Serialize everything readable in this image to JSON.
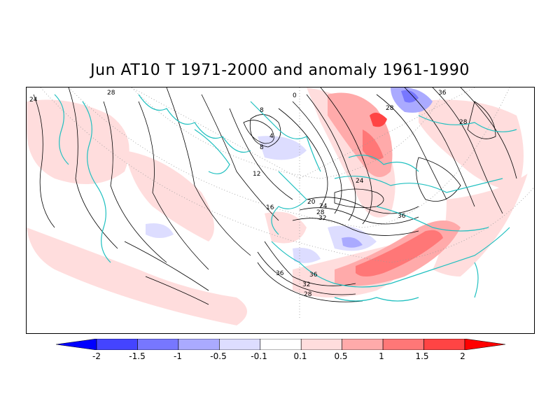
{
  "title": "Jun AT10 T 1971-2000 and anomaly 1961-1990",
  "contour_labels": [
    "24",
    "28",
    "0",
    "36",
    "8",
    "28",
    "4",
    "8",
    "28",
    "12",
    "24",
    "16",
    "20",
    "24",
    "28",
    "32",
    "36",
    "36",
    "36",
    "32",
    "28"
  ],
  "colorbar": {
    "labels": [
      "-2",
      "-1.5",
      "-1",
      "-0.5",
      "-0.1",
      "0.1",
      "0.5",
      "1",
      "1.5",
      "2"
    ],
    "colors": [
      "#0000ff",
      "#4444ff",
      "#7777ff",
      "#aaaaff",
      "#ddddff",
      "#ffffff",
      "#ffdddd",
      "#ffaaaa",
      "#ff7777",
      "#ff4444",
      "#ff0000"
    ]
  },
  "colors": {
    "coastline": "#20c0c0",
    "contour": "#000000",
    "grid": "#999999"
  }
}
